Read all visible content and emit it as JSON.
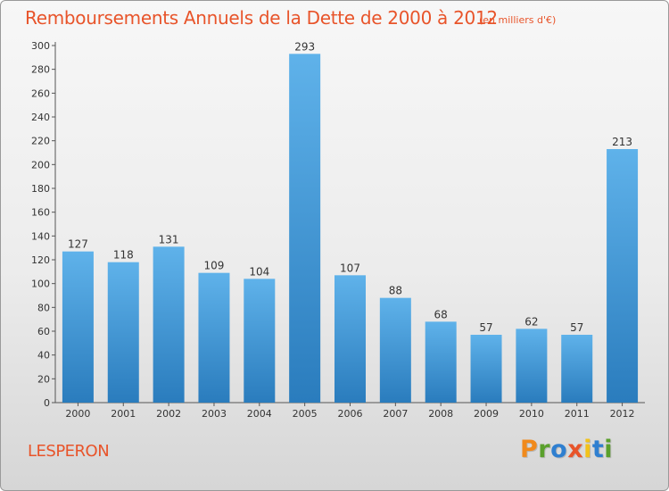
{
  "title": "Remboursements Annuels de la Dette de 2000 à 2012",
  "subtitle": "(en milliers d'€)",
  "commune": "LESPERON",
  "logo": {
    "letters": [
      "P",
      "r",
      "o",
      "x",
      "i",
      "t",
      "i"
    ],
    "colors": [
      "#f08a1c",
      "#5aa02c",
      "#2f7fd0",
      "#e8542a",
      "#f2c21a",
      "#2f7fd0",
      "#5aa02c"
    ]
  },
  "colors": {
    "bar_light": "#5fb2ea",
    "bar_dark": "#2a7cbd",
    "accent": "#e8542a"
  },
  "chart_data": {
    "type": "bar",
    "categories": [
      "2000",
      "2001",
      "2002",
      "2003",
      "2004",
      "2005",
      "2006",
      "2007",
      "2008",
      "2009",
      "2010",
      "2011",
      "2012"
    ],
    "values": [
      127,
      118,
      131,
      109,
      104,
      293,
      107,
      88,
      68,
      57,
      62,
      57,
      213
    ],
    "title": "Remboursements Annuels de la Dette de 2000 à 2012",
    "xlabel": "",
    "ylabel": "",
    "ylim": [
      0,
      300
    ],
    "yticks": [
      0,
      20,
      40,
      60,
      80,
      100,
      120,
      140,
      160,
      180,
      200,
      220,
      240,
      260,
      280,
      300
    ],
    "grid": false,
    "data_labels": true
  }
}
